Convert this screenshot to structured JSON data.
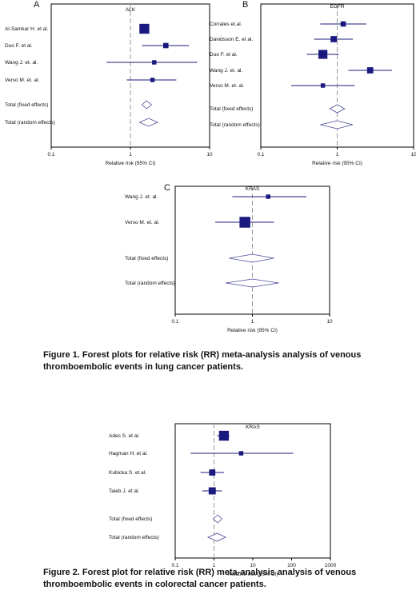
{
  "panel_letters": {
    "a": "A",
    "b": "B",
    "c": "C"
  },
  "captions": {
    "figure1": "Figure 1. Forest plots for relative risk (RR) meta-analysis analysis of venous thromboembolic events in lung cancer patients.",
    "figure2": "Figure 2. Forest plot for relative risk (RR) meta-analysis analysis of venous thromboembolic events in colorectal cancer patients."
  },
  "chart_data": [
    {
      "type": "forest",
      "panel": "A",
      "title": "ALK",
      "xlabel": "Relative risk (95% CI)",
      "xscale": "log",
      "xlim": [
        0.1,
        10
      ],
      "xticks": [
        0.1,
        1,
        10
      ],
      "xtick_labels": [
        "0.1",
        "1",
        "10"
      ],
      "studies": [
        {
          "name": "Al-Samkar H. et al.",
          "rr": 1.5,
          "lo": 1.3,
          "hi": 1.7,
          "weight": 9
        },
        {
          "name": "Duo F. et al.",
          "rr": 2.8,
          "lo": 1.4,
          "hi": 5.5,
          "weight": 4
        },
        {
          "name": "Wang J. et. al.",
          "rr": 2.0,
          "lo": 0.5,
          "hi": 7.0,
          "weight": 3
        },
        {
          "name": "Verso M. et. al.",
          "rr": 1.9,
          "lo": 0.9,
          "hi": 3.8,
          "weight": 3
        }
      ],
      "pooled": [
        {
          "name": "Total (fixed effects)",
          "rr": 1.6,
          "lo": 1.4,
          "hi": 1.85
        },
        {
          "name": "Total (random effects)",
          "rr": 1.7,
          "lo": 1.3,
          "hi": 2.2
        }
      ]
    },
    {
      "type": "forest",
      "panel": "B",
      "title": "EGFR",
      "xlabel": "Relative risk (95% CI)",
      "xscale": "log",
      "xlim": [
        0.1,
        10
      ],
      "xticks": [
        0.1,
        1,
        10
      ],
      "xtick_labels": [
        "0.1",
        "1",
        "10"
      ],
      "studies": [
        {
          "name": "Corrales et.al.",
          "rr": 1.2,
          "lo": 0.6,
          "hi": 2.4,
          "weight": 4
        },
        {
          "name": "Davidsson E. et al.",
          "rr": 0.9,
          "lo": 0.5,
          "hi": 1.6,
          "weight": 5
        },
        {
          "name": "Duo F. et al.",
          "rr": 0.65,
          "lo": 0.4,
          "hi": 1.05,
          "weight": 8
        },
        {
          "name": "Wang J. et. al.",
          "rr": 2.7,
          "lo": 1.4,
          "hi": 5.2,
          "weight": 5
        },
        {
          "name": "Verso M. et. al.",
          "rr": 0.65,
          "lo": 0.25,
          "hi": 1.7,
          "weight": 3
        }
      ],
      "pooled": [
        {
          "name": "Total (fixed effects)",
          "rr": 1.0,
          "lo": 0.8,
          "hi": 1.25
        },
        {
          "name": "Total (random effects)",
          "rr": 1.0,
          "lo": 0.6,
          "hi": 1.6
        }
      ]
    },
    {
      "type": "forest",
      "panel": "C",
      "title": "KRAS",
      "xlabel": "Relative risk (95% CI)",
      "xscale": "log",
      "xlim": [
        0.1,
        10
      ],
      "xticks": [
        0.1,
        1,
        10
      ],
      "xtick_labels": [
        "0.1",
        "1",
        "10"
      ],
      "studies": [
        {
          "name": "Wang J. et. al.",
          "rr": 1.6,
          "lo": 0.55,
          "hi": 5.0,
          "weight": 3
        },
        {
          "name": "Verso M. et. al.",
          "rr": 0.8,
          "lo": 0.33,
          "hi": 1.9,
          "weight": 10
        }
      ],
      "pooled": [
        {
          "name": "Total (fixed effects)",
          "rr": 1.0,
          "lo": 0.5,
          "hi": 1.9
        },
        {
          "name": "Total (random effects)",
          "rr": 1.0,
          "lo": 0.45,
          "hi": 2.2
        }
      ]
    },
    {
      "type": "forest",
      "panel": "Figure 2",
      "title": "KRAS",
      "xlabel": "Relative risk (95% CI)",
      "xscale": "log",
      "xlim": [
        0.1,
        1000
      ],
      "xticks": [
        0.1,
        1,
        10,
        100,
        1000
      ],
      "xtick_labels": [
        "0.1",
        "1",
        "10",
        "100",
        "1000"
      ],
      "studies": [
        {
          "name": "Ades S. et al.",
          "rr": 1.8,
          "lo": 1.2,
          "hi": 2.5,
          "weight": 9
        },
        {
          "name": "Hagman H. et al.",
          "rr": 5.0,
          "lo": 0.25,
          "hi": 110,
          "weight": 3
        },
        {
          "name": "Kubicka S. et al.",
          "rr": 0.9,
          "lo": 0.45,
          "hi": 1.8,
          "weight": 5
        },
        {
          "name": "Taieb J. et al.",
          "rr": 0.9,
          "lo": 0.5,
          "hi": 1.6,
          "weight": 6
        }
      ],
      "pooled": [
        {
          "name": "Total (fixed effects)",
          "rr": 1.25,
          "lo": 0.95,
          "hi": 1.6
        },
        {
          "name": "Total (random effects)",
          "rr": 1.2,
          "lo": 0.7,
          "hi": 2.0
        }
      ]
    }
  ]
}
